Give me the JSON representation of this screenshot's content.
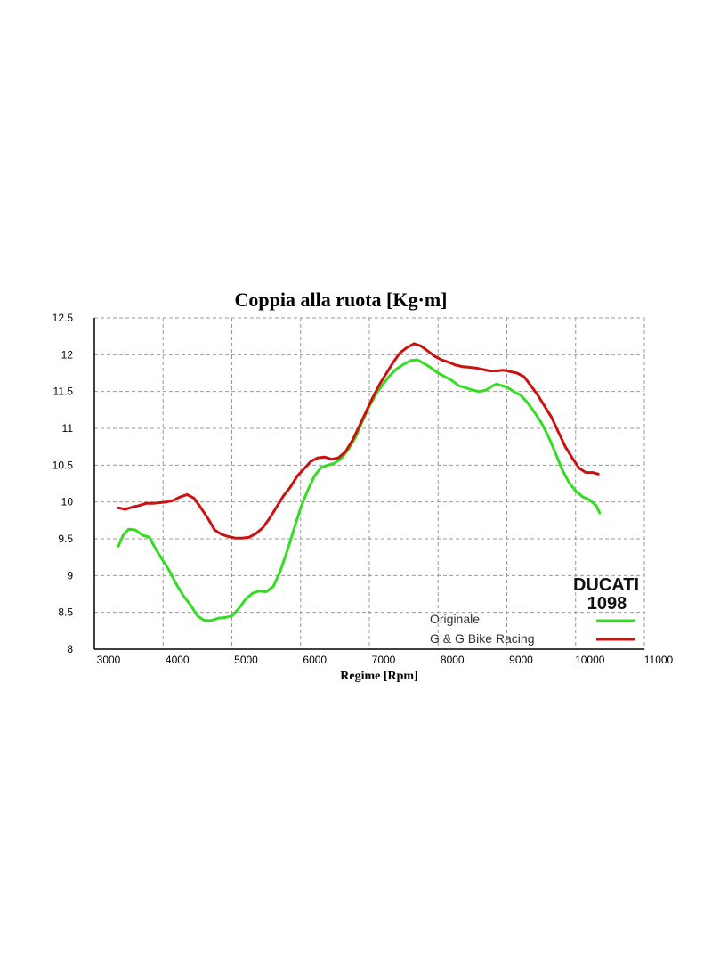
{
  "chart_data": {
    "type": "line",
    "title": "Coppia alla ruota [Kg·m]",
    "xlabel": "Regime [Rpm]",
    "ylabel": "",
    "xlim": [
      3000,
      11000
    ],
    "ylim": [
      8,
      12.5
    ],
    "x_ticks": [
      3000,
      4000,
      5000,
      6000,
      7000,
      8000,
      9000,
      10000,
      11000
    ],
    "y_ticks": [
      8,
      8.5,
      9,
      9.5,
      10,
      10.5,
      11,
      11.5,
      12,
      12.5
    ],
    "y_tick_labels": [
      "8",
      "8.5",
      "9",
      "9.5",
      "10",
      "10.5",
      "11",
      "11.5",
      "12",
      "12.5"
    ],
    "grid": true,
    "legend_position": "bottom-right",
    "annotation": [
      "DUCATI",
      "1098"
    ],
    "series": [
      {
        "name": "Originale",
        "color": "#33dd22",
        "points": [
          [
            3350,
            9.4
          ],
          [
            3420,
            9.55
          ],
          [
            3500,
            9.63
          ],
          [
            3600,
            9.62
          ],
          [
            3700,
            9.55
          ],
          [
            3800,
            9.52
          ],
          [
            3900,
            9.35
          ],
          [
            4000,
            9.2
          ],
          [
            4100,
            9.05
          ],
          [
            4200,
            8.87
          ],
          [
            4300,
            8.72
          ],
          [
            4400,
            8.6
          ],
          [
            4500,
            8.45
          ],
          [
            4600,
            8.39
          ],
          [
            4700,
            8.39
          ],
          [
            4800,
            8.42
          ],
          [
            4900,
            8.43
          ],
          [
            5000,
            8.45
          ],
          [
            5100,
            8.55
          ],
          [
            5200,
            8.68
          ],
          [
            5300,
            8.76
          ],
          [
            5400,
            8.79
          ],
          [
            5500,
            8.78
          ],
          [
            5600,
            8.85
          ],
          [
            5700,
            9.05
          ],
          [
            5800,
            9.32
          ],
          [
            5900,
            9.62
          ],
          [
            6000,
            9.92
          ],
          [
            6100,
            10.15
          ],
          [
            6200,
            10.35
          ],
          [
            6300,
            10.47
          ],
          [
            6400,
            10.5
          ],
          [
            6500,
            10.53
          ],
          [
            6600,
            10.6
          ],
          [
            6700,
            10.72
          ],
          [
            6800,
            10.88
          ],
          [
            6900,
            11.1
          ],
          [
            7000,
            11.3
          ],
          [
            7100,
            11.47
          ],
          [
            7200,
            11.6
          ],
          [
            7300,
            11.72
          ],
          [
            7400,
            11.81
          ],
          [
            7500,
            11.87
          ],
          [
            7600,
            11.92
          ],
          [
            7700,
            11.93
          ],
          [
            7800,
            11.88
          ],
          [
            7900,
            11.82
          ],
          [
            8000,
            11.75
          ],
          [
            8100,
            11.7
          ],
          [
            8200,
            11.65
          ],
          [
            8300,
            11.58
          ],
          [
            8400,
            11.55
          ],
          [
            8500,
            11.52
          ],
          [
            8600,
            11.5
          ],
          [
            8700,
            11.52
          ],
          [
            8800,
            11.58
          ],
          [
            8850,
            11.6
          ],
          [
            9000,
            11.56
          ],
          [
            9100,
            11.5
          ],
          [
            9200,
            11.45
          ],
          [
            9300,
            11.35
          ],
          [
            9400,
            11.22
          ],
          [
            9500,
            11.08
          ],
          [
            9600,
            10.9
          ],
          [
            9700,
            10.68
          ],
          [
            9800,
            10.45
          ],
          [
            9900,
            10.27
          ],
          [
            10000,
            10.15
          ],
          [
            10100,
            10.07
          ],
          [
            10200,
            10.03
          ],
          [
            10300,
            9.95
          ],
          [
            10350,
            9.85
          ]
        ]
      },
      {
        "name": "G & G Bike Racing",
        "color": "#cc1111",
        "points": [
          [
            3350,
            9.92
          ],
          [
            3450,
            9.9
          ],
          [
            3550,
            9.93
          ],
          [
            3650,
            9.95
          ],
          [
            3750,
            9.98
          ],
          [
            3850,
            9.98
          ],
          [
            3950,
            9.99
          ],
          [
            4050,
            10.0
          ],
          [
            4150,
            10.02
          ],
          [
            4250,
            10.07
          ],
          [
            4350,
            10.1
          ],
          [
            4450,
            10.05
          ],
          [
            4550,
            9.92
          ],
          [
            4650,
            9.78
          ],
          [
            4750,
            9.62
          ],
          [
            4850,
            9.56
          ],
          [
            4950,
            9.53
          ],
          [
            5050,
            9.51
          ],
          [
            5150,
            9.51
          ],
          [
            5250,
            9.52
          ],
          [
            5350,
            9.57
          ],
          [
            5450,
            9.65
          ],
          [
            5550,
            9.78
          ],
          [
            5650,
            9.93
          ],
          [
            5750,
            10.08
          ],
          [
            5850,
            10.2
          ],
          [
            5950,
            10.35
          ],
          [
            6050,
            10.45
          ],
          [
            6150,
            10.55
          ],
          [
            6250,
            10.6
          ],
          [
            6350,
            10.61
          ],
          [
            6450,
            10.58
          ],
          [
            6550,
            10.6
          ],
          [
            6650,
            10.68
          ],
          [
            6750,
            10.83
          ],
          [
            6850,
            11.02
          ],
          [
            6950,
            11.22
          ],
          [
            7050,
            11.42
          ],
          [
            7150,
            11.6
          ],
          [
            7250,
            11.75
          ],
          [
            7350,
            11.9
          ],
          [
            7450,
            12.03
          ],
          [
            7550,
            12.1
          ],
          [
            7650,
            12.15
          ],
          [
            7750,
            12.12
          ],
          [
            7850,
            12.05
          ],
          [
            7950,
            11.98
          ],
          [
            8050,
            11.93
          ],
          [
            8150,
            11.9
          ],
          [
            8250,
            11.86
          ],
          [
            8350,
            11.84
          ],
          [
            8450,
            11.83
          ],
          [
            8550,
            11.82
          ],
          [
            8650,
            11.8
          ],
          [
            8750,
            11.78
          ],
          [
            8850,
            11.78
          ],
          [
            8950,
            11.79
          ],
          [
            9050,
            11.77
          ],
          [
            9150,
            11.75
          ],
          [
            9250,
            11.7
          ],
          [
            9350,
            11.58
          ],
          [
            9450,
            11.45
          ],
          [
            9550,
            11.3
          ],
          [
            9650,
            11.15
          ],
          [
            9750,
            10.95
          ],
          [
            9850,
            10.75
          ],
          [
            9950,
            10.6
          ],
          [
            10050,
            10.46
          ],
          [
            10150,
            10.4
          ],
          [
            10250,
            10.4
          ],
          [
            10330,
            10.38
          ]
        ]
      }
    ]
  }
}
